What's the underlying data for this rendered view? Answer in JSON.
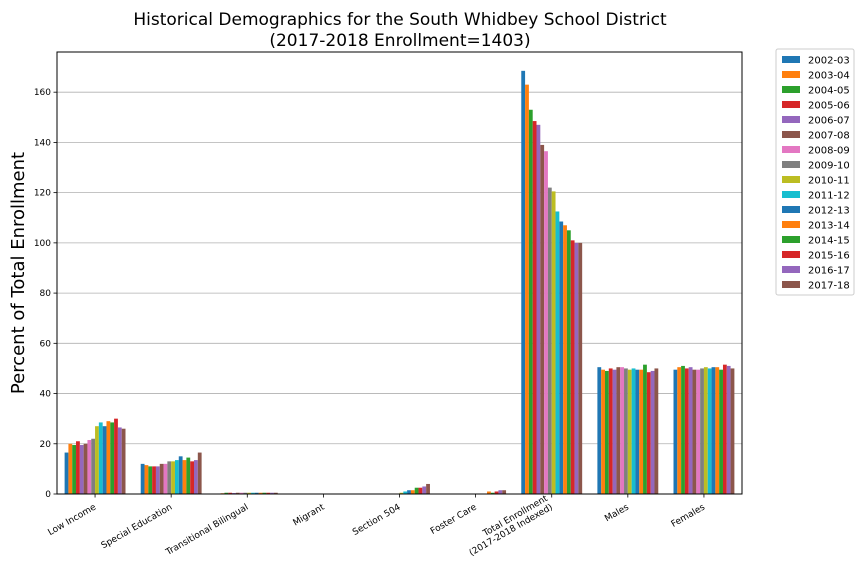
{
  "chart_data": {
    "type": "bar",
    "title": "Historical Demographics for the South Whidbey School District",
    "subtitle": "(2017-2018 Enrollment=1403)",
    "xlabel": "",
    "ylabel": "Percent of Total Enrollment",
    "ylim": [
      0,
      176
    ],
    "yticks": [
      0,
      20,
      40,
      60,
      80,
      100,
      120,
      140,
      160
    ],
    "grid": "y",
    "legend_position": "outside-top-right",
    "categories": [
      [
        "Low Income"
      ],
      [
        "Special Education"
      ],
      [
        "Transitional Bilingual"
      ],
      [
        "Migrant"
      ],
      [
        "Section 504"
      ],
      [
        "Foster Care"
      ],
      [
        "Total Enrollment",
        "(2017-2018 Indexed)"
      ],
      [
        "Males"
      ],
      [
        "Females"
      ]
    ],
    "series": [
      {
        "name": "2002-03",
        "color": "#1f77b4",
        "values": [
          16.5,
          12.0,
          0.2,
          0,
          0,
          0,
          168.5,
          50.5,
          49.5
        ]
      },
      {
        "name": "2003-04",
        "color": "#ff7f0e",
        "values": [
          20.0,
          11.5,
          0.3,
          0,
          0,
          0,
          163.0,
          49.5,
          50.5
        ]
      },
      {
        "name": "2004-05",
        "color": "#2ca02c",
        "values": [
          19.5,
          11.0,
          0.5,
          0,
          0,
          0,
          153.0,
          49.0,
          51.0
        ]
      },
      {
        "name": "2005-06",
        "color": "#d62728",
        "values": [
          21.0,
          11.0,
          0.5,
          0,
          0,
          0,
          148.5,
          50.0,
          50.0
        ]
      },
      {
        "name": "2006-07",
        "color": "#9467bd",
        "values": [
          19.5,
          11.0,
          0.4,
          0,
          0,
          0,
          147.0,
          49.5,
          50.5
        ]
      },
      {
        "name": "2007-08",
        "color": "#8c564b",
        "values": [
          20.0,
          12.0,
          0.5,
          0,
          0,
          0,
          139.0,
          50.5,
          49.5
        ]
      },
      {
        "name": "2008-09",
        "color": "#e377c2",
        "values": [
          21.5,
          12.0,
          0.5,
          0,
          0,
          0,
          136.5,
          50.5,
          49.5
        ]
      },
      {
        "name": "2009-10",
        "color": "#7f7f7f",
        "values": [
          22.0,
          13.0,
          0.5,
          0,
          0,
          0,
          122.0,
          50.0,
          50.0
        ]
      },
      {
        "name": "2010-11",
        "color": "#bcbd22",
        "values": [
          27.0,
          13.0,
          0.5,
          0,
          0.5,
          0,
          120.5,
          49.5,
          50.5
        ]
      },
      {
        "name": "2011-12",
        "color": "#17becf",
        "values": [
          28.5,
          13.5,
          0.5,
          0,
          1.0,
          0,
          112.5,
          50.0,
          50.0
        ]
      },
      {
        "name": "2012-13",
        "color": "#1f77b4",
        "values": [
          27.0,
          15.0,
          0.5,
          0,
          1.5,
          0,
          108.5,
          49.5,
          50.5
        ]
      },
      {
        "name": "2013-14",
        "color": "#ff7f0e",
        "values": [
          29.0,
          13.5,
          0.5,
          0,
          1.5,
          1.0,
          107.0,
          49.5,
          50.5
        ]
      },
      {
        "name": "2014-15",
        "color": "#2ca02c",
        "values": [
          28.5,
          14.5,
          0.5,
          0,
          2.5,
          0.5,
          105.0,
          51.5,
          49.5
        ]
      },
      {
        "name": "2015-16",
        "color": "#d62728",
        "values": [
          30.0,
          13.0,
          0.5,
          0,
          2.5,
          1.0,
          101.0,
          48.5,
          51.5
        ]
      },
      {
        "name": "2016-17",
        "color": "#9467bd",
        "values": [
          26.5,
          13.5,
          0.5,
          0,
          3.0,
          1.5,
          100.0,
          49.0,
          51.0
        ]
      },
      {
        "name": "2017-18",
        "color": "#8c564b",
        "values": [
          26.0,
          16.5,
          0.5,
          0,
          4.0,
          1.5,
          100.0,
          50.0,
          50.0
        ]
      }
    ]
  }
}
